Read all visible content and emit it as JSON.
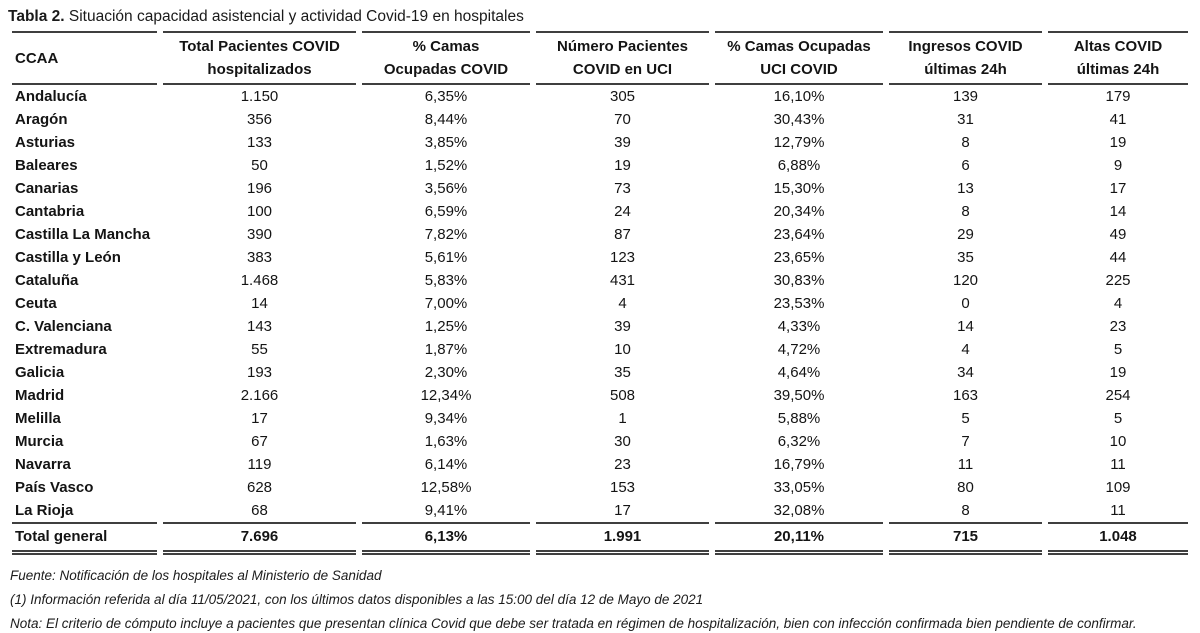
{
  "title": {
    "prefix": "Tabla 2.",
    "text": " Situación capacidad asistencial y actividad Covid-19 en hospitales"
  },
  "table": {
    "columns": [
      "CCAA",
      "Total Pacientes COVID\nhospitalizados",
      "% Camas\nOcupadas COVID",
      "Número Pacientes\nCOVID en UCI",
      "% Camas Ocupadas\nUCI COVID",
      "Ingresos COVID\núltimas 24h",
      "Altas COVID\núltimas 24h"
    ],
    "rows": [
      {
        "cells": [
          "Andalucía",
          "1.150",
          "6,35%",
          "305",
          "16,10%",
          "139",
          "179"
        ]
      },
      {
        "cells": [
          "Aragón",
          "356",
          "8,44%",
          "70",
          "30,43%",
          "31",
          "41"
        ]
      },
      {
        "cells": [
          "Asturias",
          "133",
          "3,85%",
          "39",
          "12,79%",
          "8",
          "19"
        ]
      },
      {
        "cells": [
          "Baleares",
          "50",
          "1,52%",
          "19",
          "6,88%",
          "6",
          "9"
        ]
      },
      {
        "cells": [
          "Canarias",
          "196",
          "3,56%",
          "73",
          "15,30%",
          "13",
          "17"
        ]
      },
      {
        "cells": [
          "Cantabria",
          "100",
          "6,59%",
          "24",
          "20,34%",
          "8",
          "14"
        ]
      },
      {
        "cells": [
          "Castilla La Mancha",
          "390",
          "7,82%",
          "87",
          "23,64%",
          "29",
          "49"
        ]
      },
      {
        "cells": [
          "Castilla y León",
          "383",
          "5,61%",
          "123",
          "23,65%",
          "35",
          "44"
        ]
      },
      {
        "cells": [
          "Cataluña",
          "1.468",
          "5,83%",
          "431",
          "30,83%",
          "120",
          "225"
        ]
      },
      {
        "cells": [
          "Ceuta",
          "14",
          "7,00%",
          "4",
          "23,53%",
          "0",
          "4"
        ]
      },
      {
        "cells": [
          "C. Valenciana",
          "143",
          "1,25%",
          "39",
          "4,33%",
          "14",
          "23"
        ]
      },
      {
        "cells": [
          "Extremadura",
          "55",
          "1,87%",
          "10",
          "4,72%",
          "4",
          "5"
        ]
      },
      {
        "cells": [
          "Galicia",
          "193",
          "2,30%",
          "35",
          "4,64%",
          "34",
          "19"
        ]
      },
      {
        "cells": [
          "Madrid",
          "2.166",
          "12,34%",
          "508",
          "39,50%",
          "163",
          "254"
        ]
      },
      {
        "cells": [
          "Melilla",
          "17",
          "9,34%",
          "1",
          "5,88%",
          "5",
          "5"
        ]
      },
      {
        "cells": [
          "Murcia",
          "67",
          "1,63%",
          "30",
          "6,32%",
          "7",
          "10"
        ]
      },
      {
        "cells": [
          "Navarra",
          "119",
          "6,14%",
          "23",
          "16,79%",
          "11",
          "11"
        ]
      },
      {
        "cells": [
          "País Vasco",
          "628",
          "12,58%",
          "153",
          "33,05%",
          "80",
          "109"
        ]
      },
      {
        "cells": [
          "La Rioja",
          "68",
          "9,41%",
          "17",
          "32,08%",
          "8",
          "11"
        ]
      }
    ],
    "total_row": {
      "cells": [
        "Total general",
        "7.696",
        "6,13%",
        "1.991",
        "20,11%",
        "715",
        "1.048"
      ]
    }
  },
  "footnotes": [
    "Fuente: Notificación de los hospitales al Ministerio de Sanidad",
    "(1) Información referida al día 11/05/2021, con los últimos datos disponibles a las 15:00 del día 12 de Mayo de 2021",
    "Nota: El criterio de cómputo incluye a pacientes que presentan clínica Covid que debe ser tratada en régimen de hospitalización, bien con infección confirmada bien pendiente de confirmar."
  ]
}
